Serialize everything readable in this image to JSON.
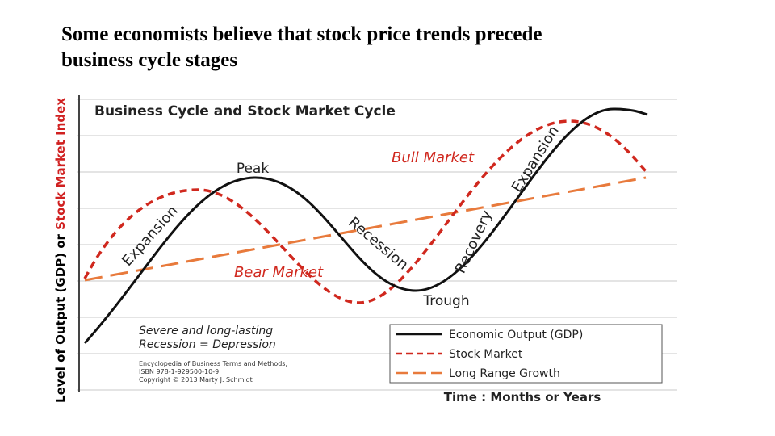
{
  "slide": {
    "title_lines": [
      "Some economists believe that stock price trends precede",
      "business cycle stages"
    ]
  },
  "figure": {
    "title": "Business Cycle and Stock Market Cycle",
    "y_axis_label": {
      "black_part": "Level of Output (GDP) or",
      "red_part": "Stock Market Index"
    },
    "x_axis_label": "Time : Months or Years",
    "annotations": {
      "peak": "Peak",
      "trough": "Trough",
      "bull_market": "Bull Market",
      "bear_market": "Bear Market",
      "expansion_1": "Expansion",
      "expansion_2": "Expansion",
      "recession": "Recession",
      "recovery": "Recovery"
    },
    "note_lines": [
      "Severe and long-lasting",
      "Recession = Depression"
    ],
    "credit_lines": [
      "Encyclopedia of Business Terms and Methods,",
      "ISBN 978-1-929500-10-9",
      "Copyright © 2013 Marty J. Schmidt"
    ],
    "legend": [
      "Economic Output (GDP)",
      "Stock Market",
      "Long Range Growth"
    ]
  }
}
